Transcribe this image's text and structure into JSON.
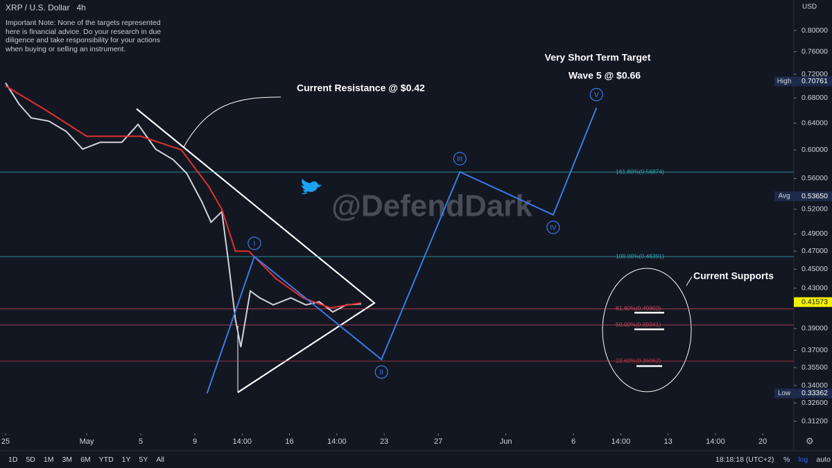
{
  "header": {
    "symbol": "XRP / U.S. Dollar",
    "interval": "4h",
    "note": "Important Note: None of the targets represented here is financial advice. Do your research in due diligence and take responsibility for your actions when buying or selling an instrument.",
    "currency": "USD"
  },
  "watermark": "@DefendDark",
  "toolbar": {
    "ranges": [
      "1D",
      "5D",
      "1M",
      "3M",
      "6M",
      "YTD",
      "1Y",
      "5Y",
      "All"
    ],
    "time": "18:18:18 (UTC+2)",
    "buttons": [
      "%",
      "log",
      "auto"
    ]
  },
  "chart_data": {
    "type": "line",
    "log_scale": true,
    "xlim": [
      -0.41,
      58.3
    ],
    "ylim": [
      0.303,
      0.861
    ],
    "xticks": [
      {
        "value": 0,
        "label": "25"
      },
      {
        "value": 6,
        "label": "May"
      },
      {
        "value": 10,
        "label": "5"
      },
      {
        "value": 14,
        "label": "9"
      },
      {
        "value": 17.5,
        "label": "14:00"
      },
      {
        "value": 21,
        "label": "16"
      },
      {
        "value": 24.5,
        "label": "14:00"
      },
      {
        "value": 28,
        "label": "23"
      },
      {
        "value": 32,
        "label": "27"
      },
      {
        "value": 37,
        "label": "Jun"
      },
      {
        "value": 42,
        "label": "6"
      },
      {
        "value": 45.5,
        "label": "14:00"
      },
      {
        "value": 49,
        "label": "13"
      },
      {
        "value": 52.5,
        "label": "14:00"
      },
      {
        "value": 56,
        "label": "20"
      }
    ],
    "yticks": [
      {
        "value": 0.8,
        "label": "0.80000"
      },
      {
        "value": 0.76,
        "label": "0.76000"
      },
      {
        "value": 0.72,
        "label": "0.72000"
      },
      {
        "value": 0.68,
        "label": "0.68000"
      },
      {
        "value": 0.64,
        "label": "0.64000"
      },
      {
        "value": 0.6,
        "label": "0.60000"
      },
      {
        "value": 0.56,
        "label": "0.56000"
      },
      {
        "value": 0.52,
        "label": "0.52000"
      },
      {
        "value": 0.49,
        "label": "0.49000"
      },
      {
        "value": 0.47,
        "label": "0.47000"
      },
      {
        "value": 0.45,
        "label": "0.45000"
      },
      {
        "value": 0.43,
        "label": "0.43000"
      },
      {
        "value": 0.39,
        "label": "0.39000"
      },
      {
        "value": 0.37,
        "label": "0.37000"
      },
      {
        "value": 0.355,
        "label": "0.35500"
      },
      {
        "value": 0.34,
        "label": "0.34000"
      },
      {
        "value": 0.326,
        "label": "0.32600"
      },
      {
        "value": 0.312,
        "label": "0.31200"
      }
    ],
    "series": [
      {
        "color": "#d1d4dc",
        "x": [
          0,
          1.0,
          1.9,
          3.2,
          4.5,
          5.7,
          7.0,
          8.6,
          9.8,
          11.1,
          12.4,
          13.4,
          14.5,
          15.2,
          16.0,
          16.5,
          17.0,
          17.4,
          18.1,
          18.8,
          19.8,
          21.1,
          22.2,
          23.2,
          24.2,
          25.2,
          26.3
        ],
        "values": [
          0.705,
          0.67,
          0.648,
          0.643,
          0.627,
          0.601,
          0.611,
          0.611,
          0.638,
          0.601,
          0.586,
          0.567,
          0.53,
          0.504,
          0.517,
          0.456,
          0.399,
          0.373,
          0.427,
          0.42,
          0.413,
          0.42,
          0.413,
          0.416,
          0.406,
          0.413,
          0.414
        ]
      },
      {
        "color": "#e0312f",
        "x": [
          0,
          3,
          6,
          10,
          13,
          15,
          16,
          17,
          18,
          20,
          22,
          24,
          26.3
        ],
        "values": [
          0.7,
          0.66,
          0.62,
          0.62,
          0.6,
          0.55,
          0.52,
          0.47,
          0.47,
          0.44,
          0.42,
          0.41,
          0.415
        ]
      },
      {
        "color": "#3a7be6",
        "x": [
          14.9,
          18.4,
          27.8,
          33.6,
          40.5,
          43.7
        ],
        "values": [
          0.3336,
          0.464,
          0.362,
          0.569,
          0.513,
          0.664
        ],
        "wave_labels": [
          null,
          "I",
          "II",
          "III",
          "IV",
          "V"
        ]
      }
    ],
    "levels": [
      {
        "label": "161.80%(0.56874)",
        "value": 0.56874,
        "color": "#2fa8b4"
      },
      {
        "label": "100.00%(0.46391)",
        "value": 0.46391,
        "color": "#2fa8b4"
      },
      {
        "label": "61.80%(0.40902)",
        "value": 0.40902,
        "color": "#c8455a"
      },
      {
        "label": "50.00%(0.39341)",
        "value": 0.39341,
        "color": "#c8455a"
      },
      {
        "label": "23.60%(0.36062)",
        "value": 0.36062,
        "color": "#b83a45"
      }
    ],
    "price_markers": [
      {
        "name": "High",
        "value": 0.70761,
        "value_label": "0.70761"
      },
      {
        "name": "Avg",
        "value": 0.5365,
        "value_label": "0.53650"
      },
      {
        "name": "Low",
        "value": 0.33362,
        "value_label": "0.33362"
      }
    ],
    "last_price": {
      "value": 0.41573,
      "value_label": "0.41573"
    },
    "annotations": [
      "Current Resistance @ $0.42",
      "Very Short Term Target",
      "Wave 5 @ $0.66",
      "Current Supports"
    ]
  }
}
